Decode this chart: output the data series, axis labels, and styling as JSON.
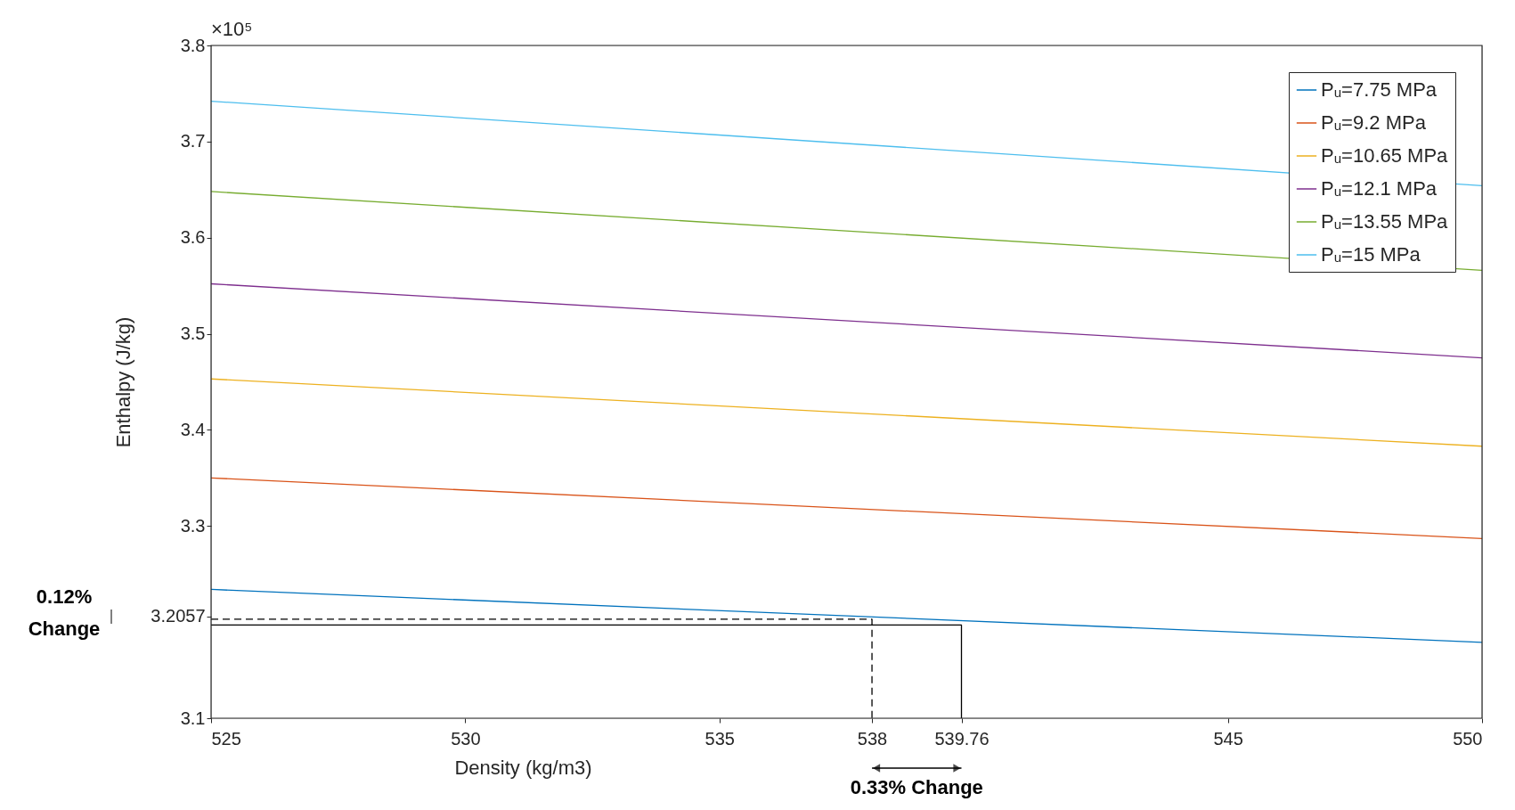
{
  "chart_data": {
    "type": "line",
    "xlabel": "Density (kg/m3)",
    "ylabel": "Enthalpy (J/kg)",
    "xlim": [
      525,
      550
    ],
    "xticks": [
      525,
      530,
      535,
      538,
      539.76,
      545,
      550
    ],
    "ylim": [
      3.1,
      3.8
    ],
    "yticks": [
      3.1,
      3.2057,
      3.3,
      3.4,
      3.5,
      3.6,
      3.7,
      3.8
    ],
    "grid": false,
    "legend": "top right",
    "line_style": "solid",
    "marker": "none",
    "annotations": [
      "×10⁵",
      "0.12%\nChange",
      "0.33% Change"
    ],
    "series": [
      {
        "name": "Pᵤ=7.75 MPa",
        "color": "#0072bd",
        "x": [
          525,
          550
        ],
        "values": [
          3.234,
          3.179
        ]
      },
      {
        "name": "Pᵤ=9.2 MPa",
        "color": "#d95319",
        "x": [
          525,
          550
        ],
        "values": [
          3.35,
          3.287
        ]
      },
      {
        "name": "Pᵤ=10.65 MPa",
        "color": "#edb120",
        "x": [
          525,
          550
        ],
        "values": [
          3.453,
          3.383
        ]
      },
      {
        "name": "Pᵤ=12.1 MPa",
        "color": "#7e2f8e",
        "x": [
          525,
          550
        ],
        "values": [
          3.552,
          3.475
        ]
      },
      {
        "name": "Pᵤ=13.55 MPa",
        "color": "#77ac30",
        "x": [
          525,
          550
        ],
        "values": [
          3.648,
          3.566
        ]
      },
      {
        "name": "Pᵤ=15 MPa",
        "color": "#4dbeee",
        "x": [
          525,
          550
        ],
        "values": [
          3.742,
          3.654
        ]
      },
      {
        "color": "#000000",
        "line_style": "dashed",
        "x": [
          525,
          538,
          538
        ],
        "values": [
          3.203,
          3.203,
          3.1
        ]
      },
      {
        "color": "#000000",
        "line_style": "solid",
        "x": [
          525,
          539.76,
          539.76
        ],
        "values": [
          3.197,
          3.197,
          3.1
        ]
      }
    ]
  }
}
